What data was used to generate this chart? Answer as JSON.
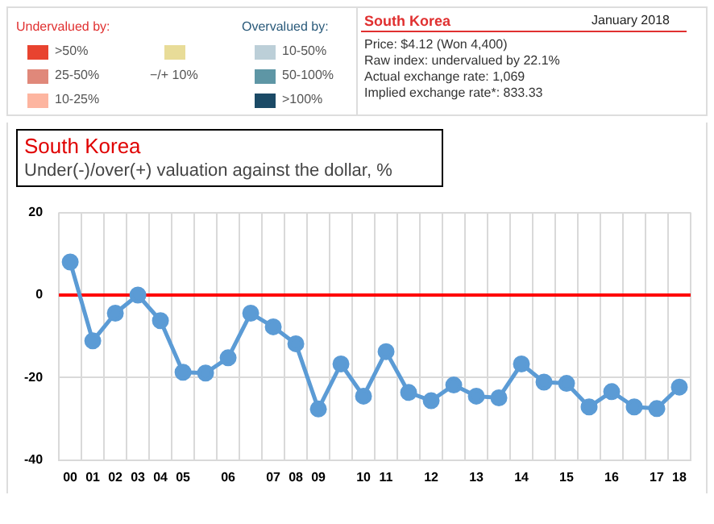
{
  "chart_data": {
    "type": "line",
    "title": "South Korea",
    "subtitle": "Under(-)/over(+) valuation against the dollar, %",
    "annotations": [
      "Undervalued by:",
      ">50%",
      "25-50%",
      "10-25%",
      "−/+ 10%",
      "Overvalued by:",
      "10-50%",
      "50-100%",
      ">100%",
      "South Korea",
      "January 2018",
      "Price: $4.12 (Won 4,400)",
      "Raw index: undervalued by 22.1%",
      "Actual exchange rate: 1,069",
      "Implied exchange rate*: 833.33"
    ],
    "categories": [
      "00",
      "01",
      "02",
      "03",
      "04",
      "05",
      null,
      "06",
      null,
      "07",
      "08",
      "09",
      null,
      "10",
      "11",
      null,
      "12",
      null,
      "13",
      null,
      "14",
      null,
      "15",
      null,
      "16",
      null,
      "17",
      "18"
    ],
    "series": [
      {
        "color": "#5b9bd5",
        "values": [
          8.0,
          -11.1,
          -4.4,
          0,
          -6.2,
          -18.7,
          -18.9,
          -15.2,
          -4.4,
          -7.7,
          -11.8,
          -27.6,
          -16.7,
          -24.5,
          -13.7,
          -23.6,
          -25.6,
          -21.8,
          -24.5,
          -24.9,
          -16.7,
          -21.1,
          -21.4,
          -27.1,
          -23.4,
          -27.1,
          -27.5,
          -22.3
        ]
      }
    ],
    "ylim": [
      -40,
      20
    ],
    "yticks": [
      -40,
      -20,
      0,
      20
    ],
    "grid": true,
    "marker": "circle",
    "line_style": "solid",
    "ref_lines": [
      {
        "axis": "y",
        "value": 0,
        "color": "#ff0000"
      }
    ]
  }
}
